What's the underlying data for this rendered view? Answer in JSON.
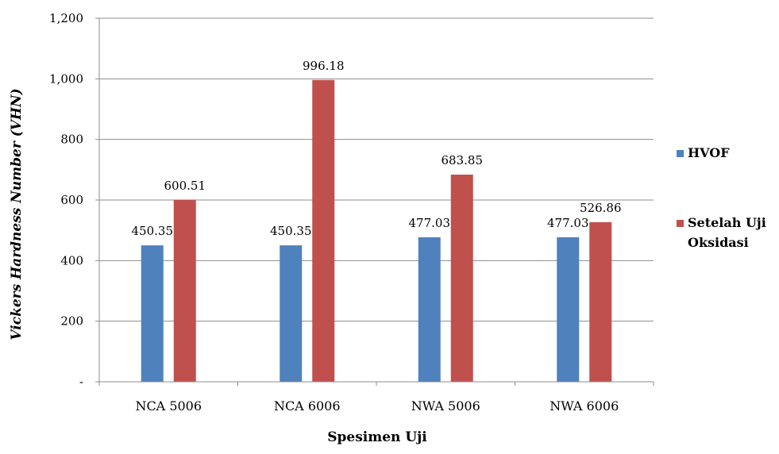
{
  "chart_data": {
    "type": "bar",
    "categories": [
      "NCA 5006",
      "NCA 6006",
      "NWA 5006",
      "NWA 6006"
    ],
    "series": [
      {
        "name": "HVOF",
        "values": [
          450.35,
          450.35,
          477.03,
          477.03
        ],
        "color": "#4f81bd"
      },
      {
        "name": "Setelah Uji Oksidasi",
        "values": [
          600.51,
          996.18,
          683.85,
          526.86
        ],
        "color": "#c0504d"
      }
    ],
    "data_labels": [
      [
        "450.35",
        "450.35",
        "477.03",
        "477.03"
      ],
      [
        "600.51",
        "996.18",
        "683.85",
        "526.86"
      ]
    ],
    "xlabel": "Spesimen Uji",
    "ylabel": "Vickers Hardness Number (VHN)",
    "ylim": [
      0,
      1200
    ],
    "yticks": [
      0,
      200,
      400,
      600,
      800,
      1000,
      1200
    ],
    "ytick_labels": [
      "-",
      "200",
      "400",
      "600",
      "800",
      "1,000",
      "1,200"
    ],
    "grid": true,
    "legend_position": "right",
    "legend": [
      {
        "lines": [
          "HVOF"
        ]
      },
      {
        "lines": [
          "Setelah Uji",
          "Oksidasi"
        ]
      }
    ]
  }
}
